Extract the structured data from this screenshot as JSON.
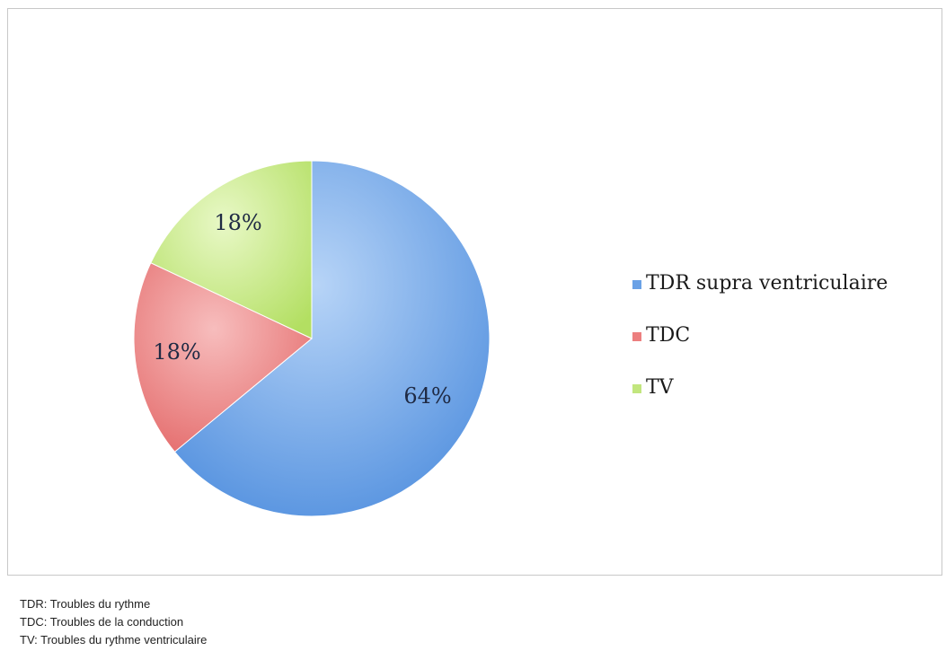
{
  "chart_data": {
    "type": "pie",
    "slices": [
      {
        "label": "TDR supra ventriculaire",
        "value": 64,
        "display": "64%",
        "color": "#6aa1e6"
      },
      {
        "label": "TDC",
        "value": 18,
        "display": "18%",
        "color": "#ec7f7f"
      },
      {
        "label": "TV",
        "value": 18,
        "display": "18%",
        "color": "#c2e67e"
      }
    ],
    "legend_position": "right"
  },
  "notes": [
    "TDR: Troubles du rythme",
    "TDC: Troubles de la conduction",
    "TV: Troubles du rythme ventriculaire"
  ]
}
